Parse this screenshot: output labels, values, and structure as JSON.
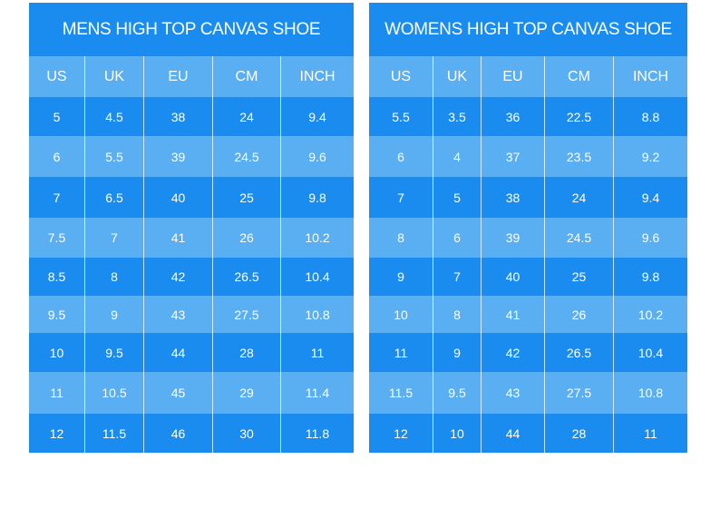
{
  "tables": [
    {
      "title": "MENS HIGH TOP CANVAS SHOE",
      "header": [
        "US",
        "UK",
        "EU",
        "CM",
        "INCH"
      ],
      "rows": [
        [
          "5",
          "4.5",
          "38",
          "24",
          "9.4"
        ],
        [
          "6",
          "5.5",
          "39",
          "24.5",
          "9.6"
        ],
        [
          "7",
          "6.5",
          "40",
          "25",
          "9.8"
        ],
        [
          "7.5",
          "7",
          "41",
          "26",
          "10.2"
        ],
        [
          "8.5",
          "8",
          "42",
          "26.5",
          "10.4"
        ],
        [
          "9.5",
          "9",
          "43",
          "27.5",
          "10.8"
        ],
        [
          "10",
          "9.5",
          "44",
          "28",
          "11"
        ],
        [
          "11",
          "10.5",
          "45",
          "29",
          "11.4"
        ],
        [
          "12",
          "11.5",
          "46",
          "30",
          "11.8"
        ]
      ]
    },
    {
      "title": "WOMENS HIGH TOP CANVAS SHOE",
      "header": [
        "US",
        "UK",
        "EU",
        "CM",
        "INCH"
      ],
      "rows": [
        [
          "5.5",
          "3.5",
          "36",
          "22.5",
          "8.8"
        ],
        [
          "6",
          "4",
          "37",
          "23.5",
          "9.2"
        ],
        [
          "7",
          "5",
          "38",
          "24",
          "9.4"
        ],
        [
          "8",
          "6",
          "39",
          "24.5",
          "9.6"
        ],
        [
          "9",
          "7",
          "40",
          "25",
          "9.8"
        ],
        [
          "10",
          "8",
          "41",
          "26",
          "10.2"
        ],
        [
          "11",
          "9",
          "42",
          "26.5",
          "10.4"
        ],
        [
          "11.5",
          "9.5",
          "43",
          "27.5",
          "10.8"
        ],
        [
          "12",
          "10",
          "44",
          "28",
          "11"
        ]
      ]
    }
  ]
}
